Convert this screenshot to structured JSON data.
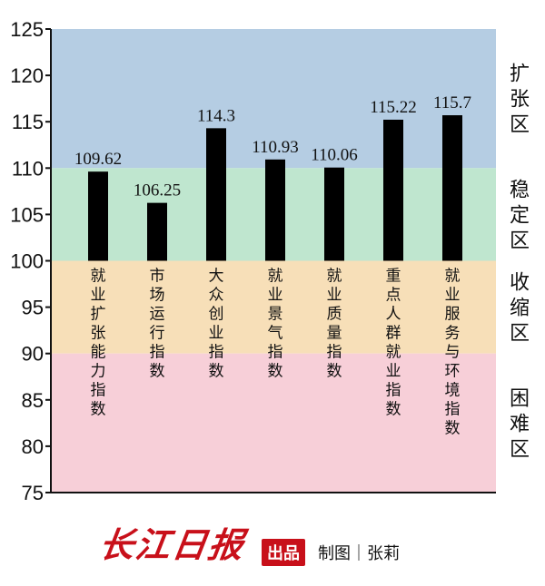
{
  "chart_data": {
    "type": "bar",
    "categories": [
      "就业扩张能力指数",
      "市场运行指数",
      "大众创业指数",
      "就业景气指数",
      "就业质量指数",
      "重点人群就业指数",
      "就业服务与环境指数"
    ],
    "values": [
      109.62,
      106.25,
      114.3,
      110.93,
      110.06,
      115.22,
      115.7
    ],
    "value_labels": [
      "109.62",
      "106.25",
      "114.3",
      "110.93",
      "110.06",
      "115.22",
      "115.7"
    ],
    "ylim": [
      75,
      125
    ],
    "yticks": [
      75,
      80,
      85,
      90,
      95,
      100,
      105,
      110,
      115,
      120,
      125
    ],
    "zones": [
      {
        "label": "扩张区",
        "from": 110,
        "to": 125,
        "color": "#b5cde3"
      },
      {
        "label": "稳定区",
        "from": 100,
        "to": 110,
        "color": "#bfe6cf"
      },
      {
        "label": "收缩区",
        "from": 90,
        "to": 100,
        "color": "#f7dfb8"
      },
      {
        "label": "困难区",
        "from": 75,
        "to": 90,
        "color": "#f7cfd8"
      }
    ],
    "bar_color": "#000000"
  },
  "footer": {
    "logo": "长江日报",
    "badge": "出品",
    "credit": "制图｜张莉"
  }
}
